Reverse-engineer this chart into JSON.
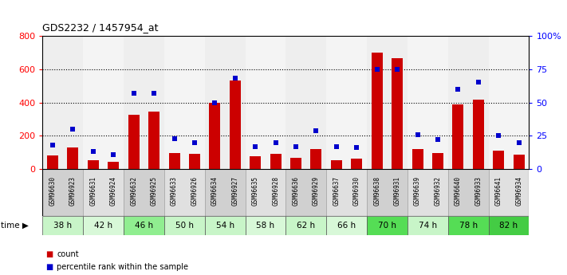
{
  "title": "GDS2232 / 1457954_at",
  "samples": [
    "GSM96630",
    "GSM96923",
    "GSM96631",
    "GSM96924",
    "GSM96632",
    "GSM96925",
    "GSM96633",
    "GSM96926",
    "GSM96634",
    "GSM96927",
    "GSM96635",
    "GSM96928",
    "GSM96636",
    "GSM96929",
    "GSM96637",
    "GSM96930",
    "GSM96638",
    "GSM96931",
    "GSM96639",
    "GSM96932",
    "GSM96640",
    "GSM96933",
    "GSM96641",
    "GSM96934"
  ],
  "counts": [
    80,
    130,
    55,
    45,
    325,
    345,
    95,
    90,
    400,
    530,
    75,
    90,
    70,
    120,
    55,
    65,
    700,
    665,
    120,
    95,
    390,
    415,
    110,
    85
  ],
  "percentiles": [
    18,
    30,
    13,
    11,
    57,
    57,
    23,
    20,
    50,
    68,
    17,
    20,
    17,
    29,
    17,
    16,
    75,
    75,
    26,
    22,
    60,
    65,
    25,
    20
  ],
  "time_labels": [
    "38 h",
    "42 h",
    "46 h",
    "50 h",
    "54 h",
    "58 h",
    "62 h",
    "66 h",
    "70 h",
    "74 h",
    "78 h",
    "82 h"
  ],
  "bar_color": "#cc0000",
  "dot_color": "#0000cc",
  "ylim_left": [
    0,
    800
  ],
  "ylim_right": [
    0,
    100
  ],
  "yticks_left": [
    0,
    200,
    400,
    600,
    800
  ],
  "yticks_right": [
    0,
    25,
    50,
    75,
    100
  ],
  "grid_values": [
    200,
    400,
    600
  ],
  "sample_bg_colors": [
    "#d0d0d0",
    "#e0e0e0"
  ],
  "time_colors": [
    "#c8f5c8",
    "#90ee90"
  ],
  "legend_count_color": "#cc0000",
  "legend_pct_color": "#0000cc"
}
